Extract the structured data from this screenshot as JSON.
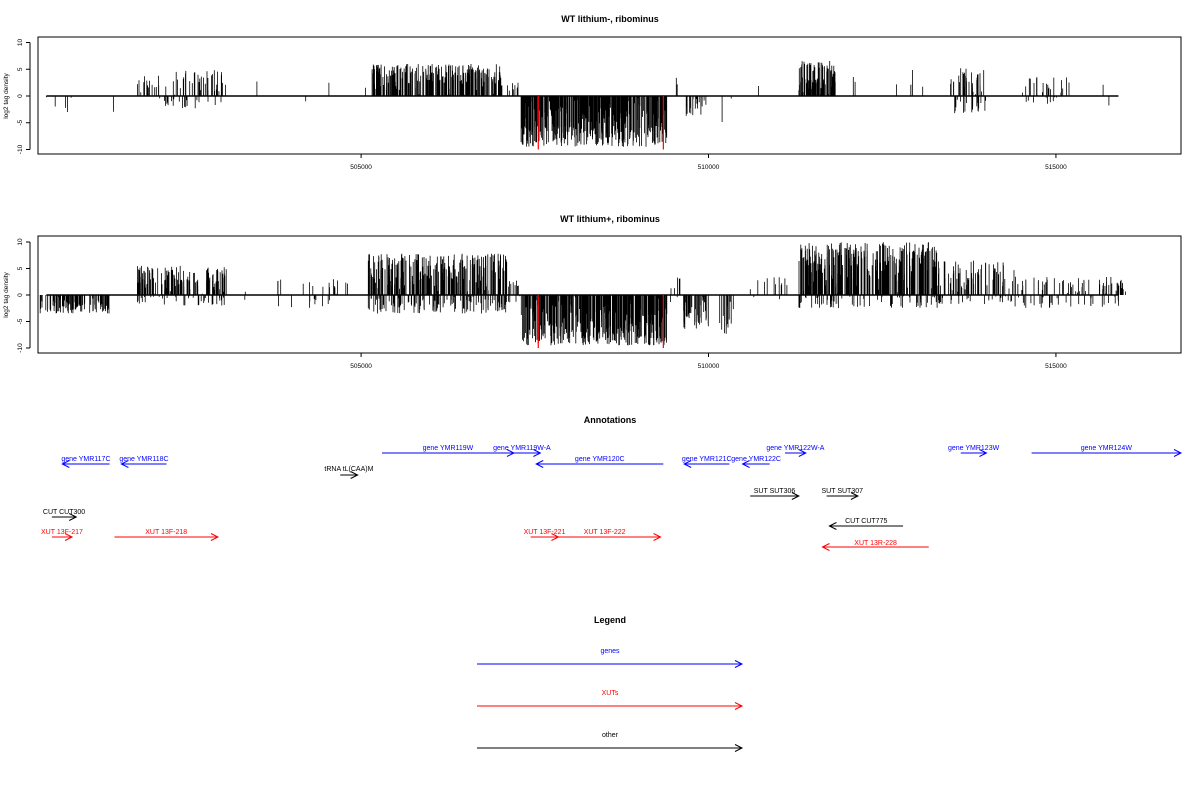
{
  "chart_data": [
    {
      "type": "bar",
      "title": "WT lithium-, ribominus",
      "ylabel": "log2 tag density",
      "xlabel": "",
      "xlim": [
        500350,
        516800
      ],
      "ylim": [
        -10,
        10
      ],
      "x_ticks": [
        505000,
        510000,
        515000
      ],
      "x_tick_labels": [
        "505000",
        "510000",
        "515000"
      ],
      "y_ticks": [
        -10,
        -5,
        0,
        5,
        10
      ],
      "y_tick_labels": [
        "-10",
        "-5",
        "0",
        "5",
        "10"
      ],
      "marker_lines": [
        507550,
        509350
      ],
      "marker_color": "#ff0000",
      "segments": [
        {
          "start": 500470,
          "end": 500560,
          "min": -3.5,
          "max": 3.5,
          "density": 0.05
        },
        {
          "start": 500560,
          "end": 500900,
          "min": -3.2,
          "max": 0,
          "density": 0.06
        },
        {
          "start": 501400,
          "end": 501450,
          "min": -3.0,
          "max": 0,
          "density": 0.05
        },
        {
          "start": 501780,
          "end": 502100,
          "min": 0,
          "max": 3.8,
          "density": 0.22
        },
        {
          "start": 502100,
          "end": 503060,
          "min": -2.3,
          "max": 4.8,
          "density": 0.32
        },
        {
          "start": 503500,
          "end": 503520,
          "min": 0,
          "max": 3.0,
          "density": 0.05
        },
        {
          "start": 504200,
          "end": 504230,
          "min": -1.5,
          "max": 0,
          "density": 0.05
        },
        {
          "start": 504520,
          "end": 504550,
          "min": 0,
          "max": 2.7,
          "density": 0.05
        },
        {
          "start": 505050,
          "end": 505120,
          "min": 0,
          "max": 2.2,
          "density": 0.1
        },
        {
          "start": 505150,
          "end": 507020,
          "min": 0,
          "max": 6.0,
          "density": 0.7
        },
        {
          "start": 507020,
          "end": 507260,
          "min": 0,
          "max": 2.5,
          "density": 0.2
        },
        {
          "start": 507300,
          "end": 509400,
          "min": -9.5,
          "max": 0,
          "density": 1.0
        },
        {
          "start": 509500,
          "end": 509600,
          "min": 0,
          "max": 3.6,
          "density": 0.1
        },
        {
          "start": 509660,
          "end": 509940,
          "min": -3.8,
          "max": 0,
          "density": 0.3
        },
        {
          "start": 509950,
          "end": 510000,
          "min": -5.6,
          "max": 0,
          "density": 0.08
        },
        {
          "start": 510180,
          "end": 510250,
          "min": -6.1,
          "max": 0,
          "density": 0.08
        },
        {
          "start": 510320,
          "end": 510340,
          "min": -1.2,
          "max": 0,
          "density": 0.05
        },
        {
          "start": 510700,
          "end": 510720,
          "min": 0,
          "max": 2.6,
          "density": 0.05
        },
        {
          "start": 511300,
          "end": 511830,
          "min": 0,
          "max": 6.7,
          "density": 0.9
        },
        {
          "start": 512050,
          "end": 512150,
          "min": 0,
          "max": 4.5,
          "density": 0.1
        },
        {
          "start": 512700,
          "end": 512730,
          "min": -2.4,
          "max": 2.5,
          "density": 0.06
        },
        {
          "start": 512880,
          "end": 513000,
          "min": -2.2,
          "max": 5.6,
          "density": 0.1
        },
        {
          "start": 513080,
          "end": 513130,
          "min": 0,
          "max": 2.0,
          "density": 0.05
        },
        {
          "start": 513480,
          "end": 514000,
          "min": -3.2,
          "max": 5.2,
          "density": 0.5
        },
        {
          "start": 514480,
          "end": 515200,
          "min": -1.5,
          "max": 3.6,
          "density": 0.2
        },
        {
          "start": 515640,
          "end": 515680,
          "min": 0,
          "max": 2.8,
          "density": 0.05
        },
        {
          "start": 515760,
          "end": 515800,
          "min": -2.3,
          "max": 2.0,
          "density": 0.05
        }
      ]
    },
    {
      "type": "bar",
      "title": "WT lithium+, ribominus",
      "ylabel": "log2 tag density",
      "xlabel": "",
      "xlim": [
        500350,
        516800
      ],
      "ylim": [
        -10,
        10
      ],
      "x_ticks": [
        505000,
        510000,
        515000
      ],
      "x_tick_labels": [
        "505000",
        "510000",
        "515000"
      ],
      "y_ticks": [
        -10,
        -5,
        0,
        5,
        10
      ],
      "y_tick_labels": [
        "-10",
        "-5",
        "0",
        "5",
        "10"
      ],
      "marker_lines": [
        507550,
        509350
      ],
      "marker_color": "#ff0000",
      "segments": [
        {
          "start": 500380,
          "end": 501380,
          "min": -3.5,
          "max": 0,
          "density": 0.55
        },
        {
          "start": 501780,
          "end": 503060,
          "min": -2.0,
          "max": 5.5,
          "density": 0.6
        },
        {
          "start": 503300,
          "end": 503500,
          "min": -1.5,
          "max": 1.5,
          "density": 0.05
        },
        {
          "start": 503800,
          "end": 504850,
          "min": -2.5,
          "max": 3.0,
          "density": 0.12
        },
        {
          "start": 505100,
          "end": 507100,
          "min": -3.5,
          "max": 7.8,
          "density": 0.9
        },
        {
          "start": 507100,
          "end": 507300,
          "min": -1.5,
          "max": 3.0,
          "density": 0.3
        },
        {
          "start": 507300,
          "end": 509400,
          "min": -9.5,
          "max": 0,
          "density": 1.0
        },
        {
          "start": 509450,
          "end": 509620,
          "min": -2.0,
          "max": 3.3,
          "density": 0.2
        },
        {
          "start": 509640,
          "end": 510000,
          "min": -6.4,
          "max": 0,
          "density": 0.6
        },
        {
          "start": 510160,
          "end": 510380,
          "min": -7.6,
          "max": 0,
          "density": 0.3
        },
        {
          "start": 510560,
          "end": 511200,
          "min": -2.2,
          "max": 3.5,
          "density": 0.1
        },
        {
          "start": 511300,
          "end": 513300,
          "min": -2.5,
          "max": 10.0,
          "density": 0.9
        },
        {
          "start": 513300,
          "end": 514400,
          "min": -1.8,
          "max": 6.5,
          "density": 0.45
        },
        {
          "start": 514400,
          "end": 516000,
          "min": -2.5,
          "max": 3.5,
          "density": 0.3
        }
      ]
    }
  ],
  "annotations": {
    "title": "Annotations",
    "features": [
      {
        "label": "gene YMR117C",
        "kind": "genes",
        "start": 500700,
        "end": 501380
      },
      {
        "label": "gene YMR118C",
        "kind": "genes",
        "start": 501550,
        "end": 502200
      },
      {
        "label": "tRNA tL(CAA)M",
        "kind": "other",
        "start": 504700,
        "end": 504950
      },
      {
        "label": "gene YMR119W",
        "kind": "genes",
        "start": 505300,
        "end": 507200
      },
      {
        "label": "gene YMR119W-A",
        "kind": "genes",
        "start": 507050,
        "end": 507580
      },
      {
        "label": "gene YMR120C",
        "kind": "genes",
        "start": 507520,
        "end": 509350
      },
      {
        "label": "gene YMR121C",
        "kind": "genes",
        "start": 509650,
        "end": 510300
      },
      {
        "label": "gene YMR122C",
        "kind": "genes",
        "start": 510490,
        "end": 510880
      },
      {
        "label": "gene YMR122W-A",
        "kind": "genes",
        "start": 511100,
        "end": 511400
      },
      {
        "label": "gene YMR123W",
        "kind": "genes",
        "start": 513630,
        "end": 514000
      },
      {
        "label": "gene YMR124W",
        "kind": "genes",
        "start": 514650,
        "end": 516800
      },
      {
        "label": "SUT SUT306",
        "kind": "other",
        "start": 510600,
        "end": 511300
      },
      {
        "label": "SUT SUT307",
        "kind": "other",
        "start": 511700,
        "end": 512150
      },
      {
        "label": "CUT CUT300",
        "kind": "other",
        "start": 500550,
        "end": 500900
      },
      {
        "label": "CUT CUT775",
        "kind": "other",
        "start": 511740,
        "end": 512800
      },
      {
        "label": "XUT 13F-217",
        "kind": "XUTs",
        "start": 500550,
        "end": 500840
      },
      {
        "label": "XUT 13F-218",
        "kind": "XUTs",
        "start": 501450,
        "end": 502940
      },
      {
        "label": "XUT 13F-221",
        "kind": "XUTs",
        "start": 507440,
        "end": 507840
      },
      {
        "label": "XUT 13F-222",
        "kind": "XUTs",
        "start": 507700,
        "end": 509310
      },
      {
        "label": "XUT 13R-228",
        "kind": "XUTs",
        "start": 511640,
        "end": 513170
      }
    ]
  },
  "legend": {
    "title": "Legend",
    "entries": [
      {
        "label": "genes",
        "color": "#0000ff"
      },
      {
        "label": "XUTs",
        "color": "#ff0000"
      },
      {
        "label": "other",
        "color": "#000000"
      }
    ]
  }
}
